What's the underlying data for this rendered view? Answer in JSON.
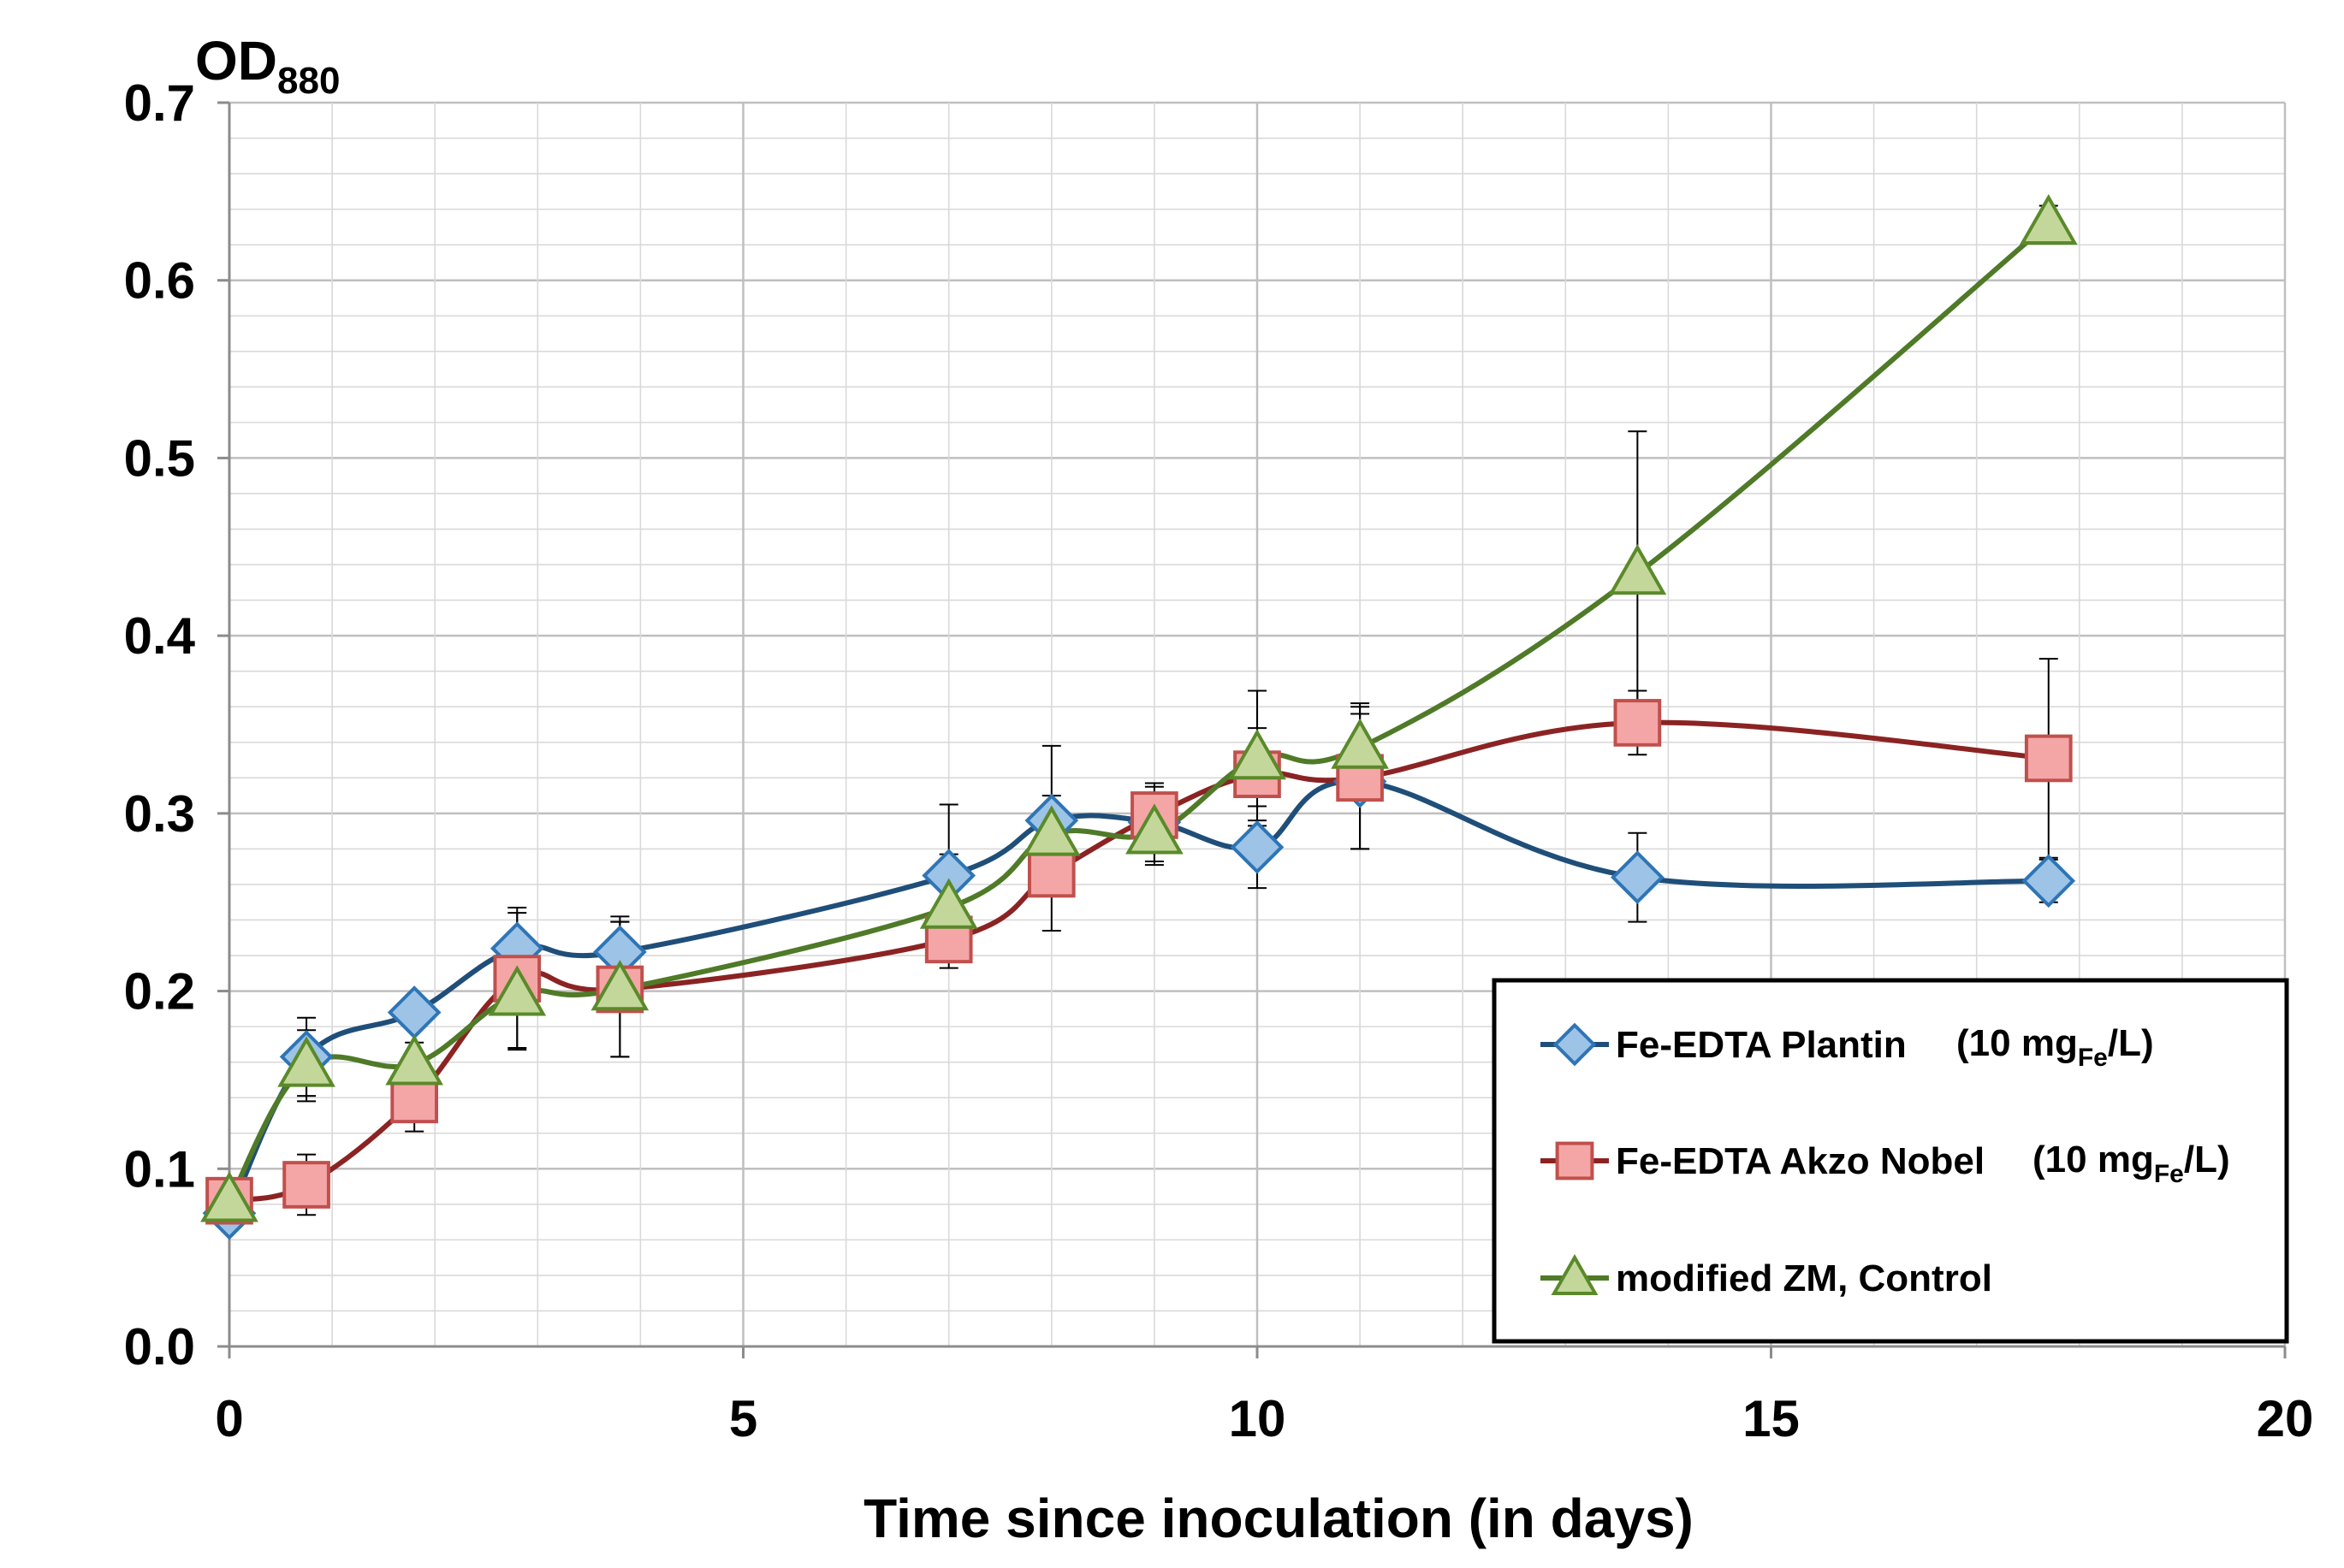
{
  "chart_data": {
    "type": "line",
    "title": "",
    "xlabel": "Time since inoculation (in days)",
    "ylabel": "OD",
    "ylabel_subscript": "880",
    "xlim": [
      0,
      20
    ],
    "ylim": [
      0,
      0.7
    ],
    "x_major_step": 5,
    "x_minor_step": 1,
    "y_major_step": 0.1,
    "y_minor_step": 0.02,
    "grid": true,
    "legend_position": "bottom-right",
    "x_tick_labels": [
      "0",
      "5",
      "10",
      "15",
      "20"
    ],
    "y_tick_labels": [
      "0.0",
      "0.1",
      "0.2",
      "0.3",
      "0.4",
      "0.5",
      "0.6",
      "0.7"
    ],
    "series": [
      {
        "name": "Fe-EDTA Plantin",
        "legend_unit_prefix": "(10 mg",
        "legend_unit_sub": "Fe",
        "legend_unit_suffix": "/L)",
        "marker": "diamond",
        "line_color": "#1f4e79",
        "marker_fill": "#9dc3e6",
        "marker_stroke": "#2e75b6",
        "x": [
          0,
          0.75,
          1.8,
          2.8,
          3.8,
          7.0,
          8.0,
          9.0,
          10.0,
          11.0,
          13.7,
          17.7
        ],
        "y": [
          0.075,
          0.163,
          0.188,
          0.224,
          0.222,
          0.265,
          0.296,
          0.295,
          0.281,
          0.318,
          0.264,
          0.262
        ],
        "err": [
          0.008,
          0.022,
          0.008,
          0.02,
          0.02,
          0.04,
          0.042,
          0.022,
          0.023,
          0.038,
          0.025,
          0.012
        ]
      },
      {
        "name": "Fe-EDTA Akzo Nobel",
        "legend_unit_prefix": "(10 mg",
        "legend_unit_sub": "Fe",
        "legend_unit_suffix": "/L)",
        "marker": "square",
        "line_color": "#8b2323",
        "marker_fill": "#f4a6a6",
        "marker_stroke": "#c0504d",
        "x": [
          0,
          0.75,
          1.8,
          2.8,
          3.8,
          7.0,
          8.0,
          9.0,
          10.0,
          11.0,
          13.7,
          17.7
        ],
        "y": [
          0.082,
          0.091,
          0.139,
          0.207,
          0.201,
          0.229,
          0.266,
          0.299,
          0.322,
          0.32,
          0.351,
          0.331
        ],
        "err": [
          0.008,
          0.017,
          0.018,
          0.04,
          0.038,
          0.016,
          0.032,
          0.016,
          0.026,
          0.04,
          0.018,
          0.056
        ]
      },
      {
        "name": "modified ZM, Control",
        "legend_unit_prefix": "",
        "legend_unit_sub": "",
        "legend_unit_suffix": "",
        "marker": "triangle",
        "line_color": "#4f7a28",
        "marker_fill": "#c4d79b",
        "marker_stroke": "#5a8a2a",
        "x": [
          0,
          0.75,
          1.8,
          2.8,
          3.8,
          7.0,
          8.0,
          9.0,
          10.0,
          11.0,
          13.7,
          17.7
        ],
        "y": [
          0.082,
          0.158,
          0.159,
          0.198,
          0.201,
          0.247,
          0.288,
          0.289,
          0.331,
          0.337,
          0.435,
          0.632
        ],
        "err": [
          0.008,
          0.02,
          0.012,
          0.03,
          0.038,
          0.03,
          0.022,
          0.018,
          0.038,
          0.025,
          0.08,
          0.01
        ]
      }
    ]
  }
}
